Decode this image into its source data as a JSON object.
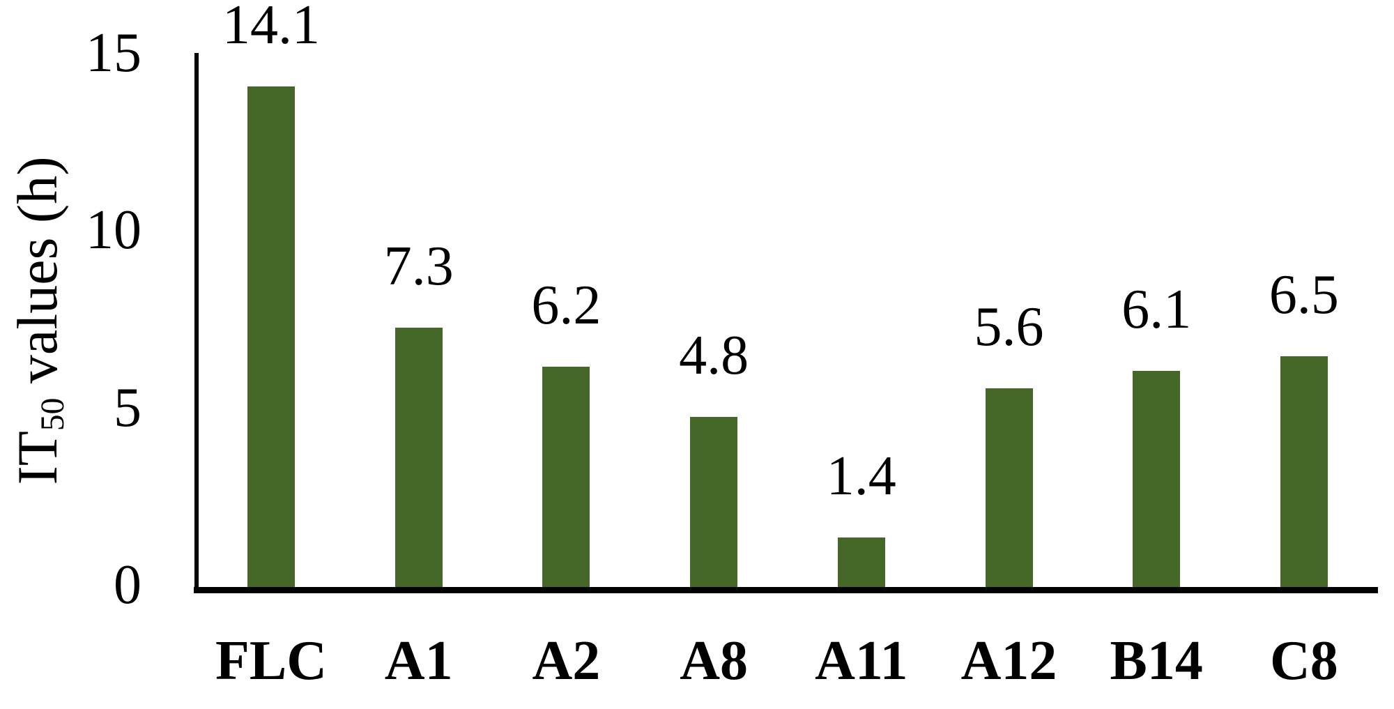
{
  "chart_data": {
    "type": "bar",
    "title": "",
    "categories": [
      "FLC",
      "A1",
      "A2",
      "A8",
      "A11",
      "A12",
      "B14",
      "C8"
    ],
    "values": [
      14.1,
      7.3,
      6.2,
      4.8,
      1.4,
      5.6,
      6.1,
      6.5
    ],
    "data_labels": [
      "14.1",
      "7.3",
      "6.2",
      "4.8",
      "1.4",
      "5.6",
      "6.1",
      "6.5"
    ],
    "xlabel": "",
    "ylabel": "IT50 values (h)",
    "ylabel_parts": {
      "prefix": "IT",
      "subscript": "50",
      "suffix": " values (h)"
    },
    "yticks": [
      0,
      5,
      10,
      15
    ],
    "ylim": [
      0,
      15
    ],
    "grid": false,
    "legend": "none",
    "bar_color": "#456829",
    "axis_color": "#000000",
    "text_color": "#000000"
  }
}
